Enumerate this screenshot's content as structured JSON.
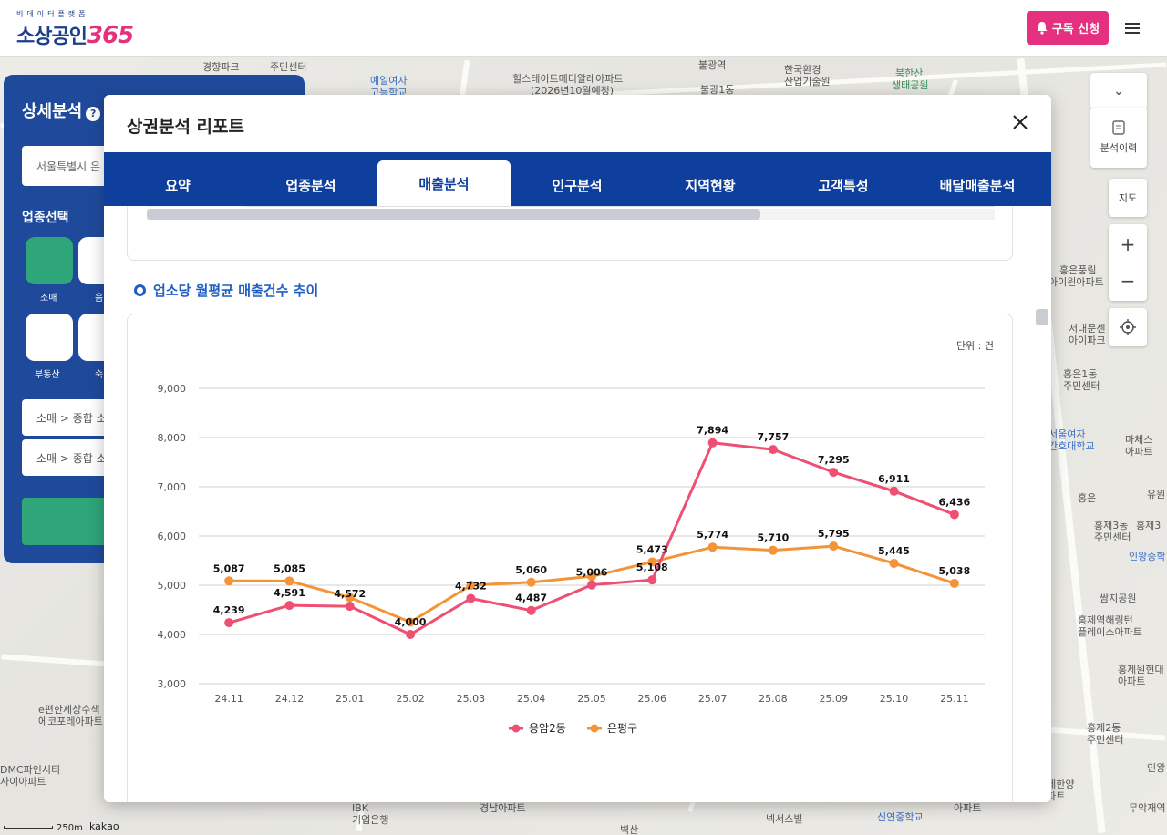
{
  "header": {
    "logo_sub": "빅데이터플랫폼",
    "logo_main": "소상공인",
    "logo_num": "365",
    "subscribe_label": "구독 신청",
    "menu_icon": "hamburger-icon"
  },
  "map": {
    "labels": [
      "경향파크",
      "주민센터",
      "예일여자",
      "고등학교",
      "힐스테이트메디알레아파트",
      "(2026년10월예정)",
      "불광역",
      "불광1동",
      "한국환경",
      "산업기술원",
      "북한산",
      "생태공원",
      "홍은풍림",
      "아이원아파트",
      "서대문센",
      "아이파크",
      "홍은1동",
      "주민센터",
      "서울여자",
      "간호대학교",
      "마체스",
      "아파트",
      "유원",
      "홍은",
      "홍제3동",
      "주민센터",
      "홍제3",
      "인왕중학",
      "쌈지공원",
      "홍제역해링턴",
      "플레이스아파트",
      "홍제원현대",
      "아파트",
      "홍제2동",
      "주민센터",
      "인왕",
      "무악재역",
      "홍제한양",
      "아파트",
      "신연중학교",
      "넥서스빌",
      "아파트",
      "IBK",
      "기업은행",
      "경남아파트",
      "e편한세상수색",
      "에코포레아파트",
      "DMC파인시티",
      "자이아파트",
      "벽산",
      "250m",
      "kakao"
    ],
    "controls": {
      "history_label": "분석이력",
      "map_label": "지도",
      "zoom_in": "+",
      "zoom_out": "−"
    }
  },
  "left_panel": {
    "title": "상세분석",
    "help": "?",
    "address_value": "서울특별시 은",
    "sector_title": "업종선택",
    "categories": [
      "소매",
      "음",
      "부동산",
      "숙"
    ],
    "rows": [
      "소매 > 종합 소",
      "소매 > 종합 소"
    ]
  },
  "modal": {
    "title": "상권분석 리포트",
    "close_icon": "close-icon",
    "tabs": [
      "요약",
      "업종분석",
      "매출분석",
      "인구분석",
      "지역현황",
      "고객특성",
      "배달매출분석"
    ],
    "active_tab": "매출분석",
    "section_title": "업소당 월평균 매출건수 추이",
    "unit_label": "단위 : 건"
  },
  "chart_data": {
    "type": "line",
    "title": "",
    "xlabel": "",
    "ylabel": "",
    "categories": [
      "24.11",
      "24.12",
      "25.01",
      "25.02",
      "25.03",
      "25.04",
      "25.05",
      "25.06",
      "25.07",
      "25.08",
      "25.09",
      "25.10",
      "25.11"
    ],
    "ylim": [
      3000,
      9000
    ],
    "yticks": [
      3000,
      4000,
      5000,
      6000,
      7000,
      8000,
      9000
    ],
    "ytick_labels": [
      "3,000",
      "4,000",
      "5,000",
      "6,000",
      "7,000",
      "8,000",
      "9,000"
    ],
    "grid": true,
    "legend": "bottom-center",
    "series": [
      {
        "name": "응암2동",
        "color": "#ee4f73",
        "values": [
          4239,
          4591,
          4572,
          4000,
          4732,
          4487,
          5006,
          5108,
          7894,
          7757,
          7295,
          6911,
          6436
        ],
        "labels": [
          "4,239",
          "4,591",
          "4,572",
          "4,000",
          "4,732",
          "4,487",
          "5,006",
          "5,108",
          "7,894",
          "7,757",
          "7,295",
          "6,911",
          "6,436"
        ]
      },
      {
        "name": "은평구",
        "color": "#f39438",
        "values": [
          5087,
          5085,
          4750,
          4250,
          5000,
          5060,
          5180,
          5473,
          5774,
          5710,
          5795,
          5445,
          5038
        ],
        "labels": [
          "5,087",
          "5,085",
          null,
          null,
          null,
          "5,060",
          null,
          "5,473",
          "5,774",
          "5,710",
          "5,795",
          "5,445",
          "5,038"
        ]
      }
    ]
  }
}
